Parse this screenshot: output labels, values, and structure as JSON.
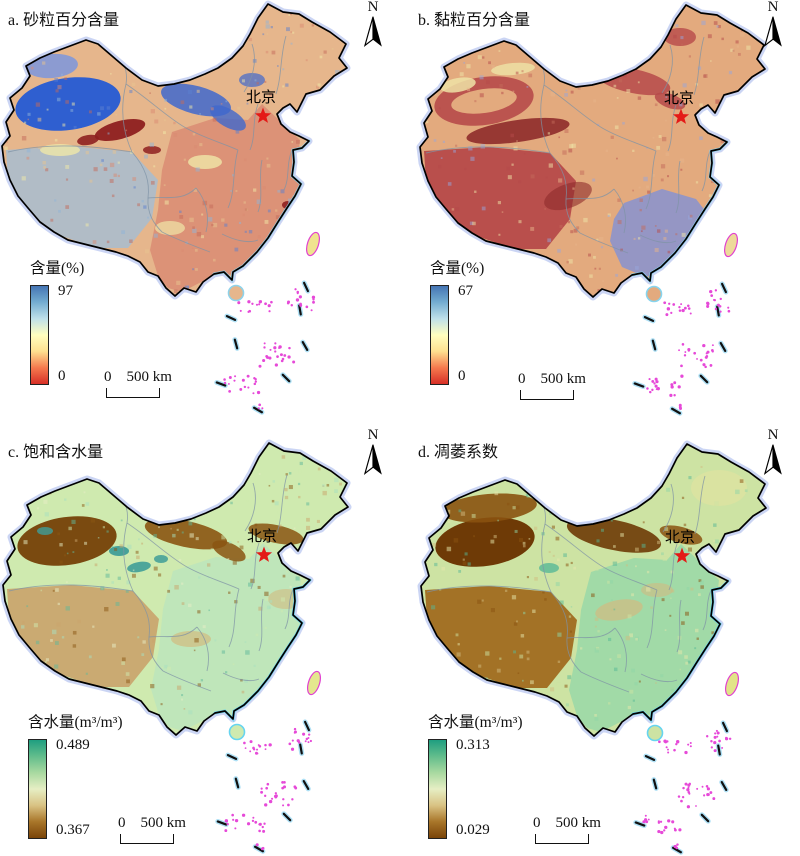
{
  "panels": [
    {
      "id": "a",
      "title": "a. 砂粒百分含量",
      "north_label": "N",
      "city_label": "北京",
      "legend": {
        "title": "含量(%)",
        "max": "97",
        "min": "0"
      },
      "scalebar": {
        "zero": "0",
        "distance": "500 km"
      },
      "palette": {
        "base": "#e6b68c",
        "tibet": "#aebdc9",
        "tarim": "#2f5fd0",
        "junggar": "#7b97dd",
        "blue2": "#4068cc",
        "accentDark": "#8e2020",
        "east": "#d98a72",
        "cream": "#f0e7a8",
        "coast": "#8ed2ea",
        "taiwan": "#f0e38f",
        "islands": "#e649d8",
        "star": "#e41a17",
        "colorbar": [
          "#4575b4",
          "#74add1",
          "#bfe0ea",
          "#ffffbf",
          "#fee090",
          "#f57a4e",
          "#d73027"
        ],
        "speckle": [
          "#f2eaa8",
          "#d98a72",
          "#c46a5a",
          "#8fb4d8",
          "#e7c38f",
          "#5b7fd0"
        ]
      }
    },
    {
      "id": "b",
      "title": "b. 黏粒百分含量",
      "north_label": "N",
      "city_label": "北京",
      "legend": {
        "title": "含量(%)",
        "max": "67",
        "min": "0"
      },
      "scalebar": {
        "zero": "0",
        "distance": "500 km"
      },
      "palette": {
        "base": "#e3aa7e",
        "crimson": "#b64a4a",
        "darkRed": "#8e2b2b",
        "blueSE": "#8191d6",
        "cream": "#eee3a6",
        "coast": "#86d4ee",
        "taiwan": "#eeda9a",
        "islands": "#e649d8",
        "star": "#e41a17",
        "colorbar": [
          "#4575b4",
          "#74add1",
          "#bfe0ea",
          "#ffffbf",
          "#fee090",
          "#f57a4e",
          "#d73027"
        ],
        "speckle": [
          "#f0e6a8",
          "#c46a5a",
          "#b64a4a",
          "#97a5dc",
          "#e7b489"
        ]
      }
    },
    {
      "id": "c",
      "title": "c. 饱和含水量",
      "north_label": "N",
      "city_label": "北京",
      "legend": {
        "title": "含水量(m³/m³)",
        "max": "0.489",
        "min": "0.367"
      },
      "scalebar": {
        "zero": "0",
        "distance": "500 km"
      },
      "palette": {
        "base": "#cfeaaf",
        "tibetTan": "#c9a36b",
        "mint": "#b4e3c2",
        "brown": "#7a4a10",
        "brown2": "#8a5512",
        "teal": "#3f9e98",
        "tan2": "#d2bb80",
        "coast": "#66d4f0",
        "taiwan": "#e4e78e",
        "islands": "#e649d8",
        "star": "#e41a17",
        "colorbar": [
          "#1f9e80",
          "#62bd8c",
          "#a8d9a0",
          "#e6eec4",
          "#d9c384",
          "#a8762a",
          "#7a4408"
        ],
        "speckle": [
          "#a8dfc0",
          "#8a5512",
          "#c9a36b",
          "#5fb89a",
          "#e8eec6",
          "#cfeaaf"
        ]
      }
    },
    {
      "id": "d",
      "title": "d. 凋萎系数",
      "north_label": "N",
      "city_label": "北京",
      "legend": {
        "title": "含水量(m³/m³)",
        "max": "0.313",
        "min": "0.029"
      },
      "scalebar": {
        "zero": "0",
        "distance": "500 km"
      },
      "palette": {
        "base": "#cde3a3",
        "tibetBrown": "#a06c20",
        "greenE": "#8fd6a8",
        "brownDark": "#6e3a06",
        "brown2": "#8a5210",
        "cream3": "#e8e4a0",
        "tan2": "#d2bb80",
        "teal": "#57b896",
        "coast": "#66d4f0",
        "taiwan": "#e2e488",
        "islands": "#e649d8",
        "star": "#e41a17",
        "colorbar": [
          "#1f9e80",
          "#62bd8c",
          "#a8d9a0",
          "#e6eec4",
          "#d9c384",
          "#a8762a",
          "#7a4408"
        ],
        "speckle": [
          "#8fd6a8",
          "#8a5210",
          "#d2bb80",
          "#57b896",
          "#e8e8ac",
          "#cde3a3"
        ]
      }
    }
  ],
  "chart_data": [
    {
      "type": "heatmap",
      "title": "a. 砂粒百分含量",
      "legend_label": "含量(%)",
      "value_range": [
        0,
        97
      ],
      "colormap": "blue(high) → yellow → red(low)"
    },
    {
      "type": "heatmap",
      "title": "b. 黏粒百分含量",
      "legend_label": "含量(%)",
      "value_range": [
        0,
        67
      ],
      "colormap": "blue(high) → yellow → red(low)"
    },
    {
      "type": "heatmap",
      "title": "c. 饱和含水量",
      "legend_label": "含水量(m³/m³)",
      "value_range": [
        0.367,
        0.489
      ],
      "colormap": "teal-green(high) → pale yellow → brown(low)"
    },
    {
      "type": "heatmap",
      "title": "d. 凋萎系数",
      "legend_label": "含水量(m³/m³)",
      "value_range": [
        0.029,
        0.313
      ],
      "colormap": "teal-green(high) → pale yellow → brown(low)"
    }
  ]
}
